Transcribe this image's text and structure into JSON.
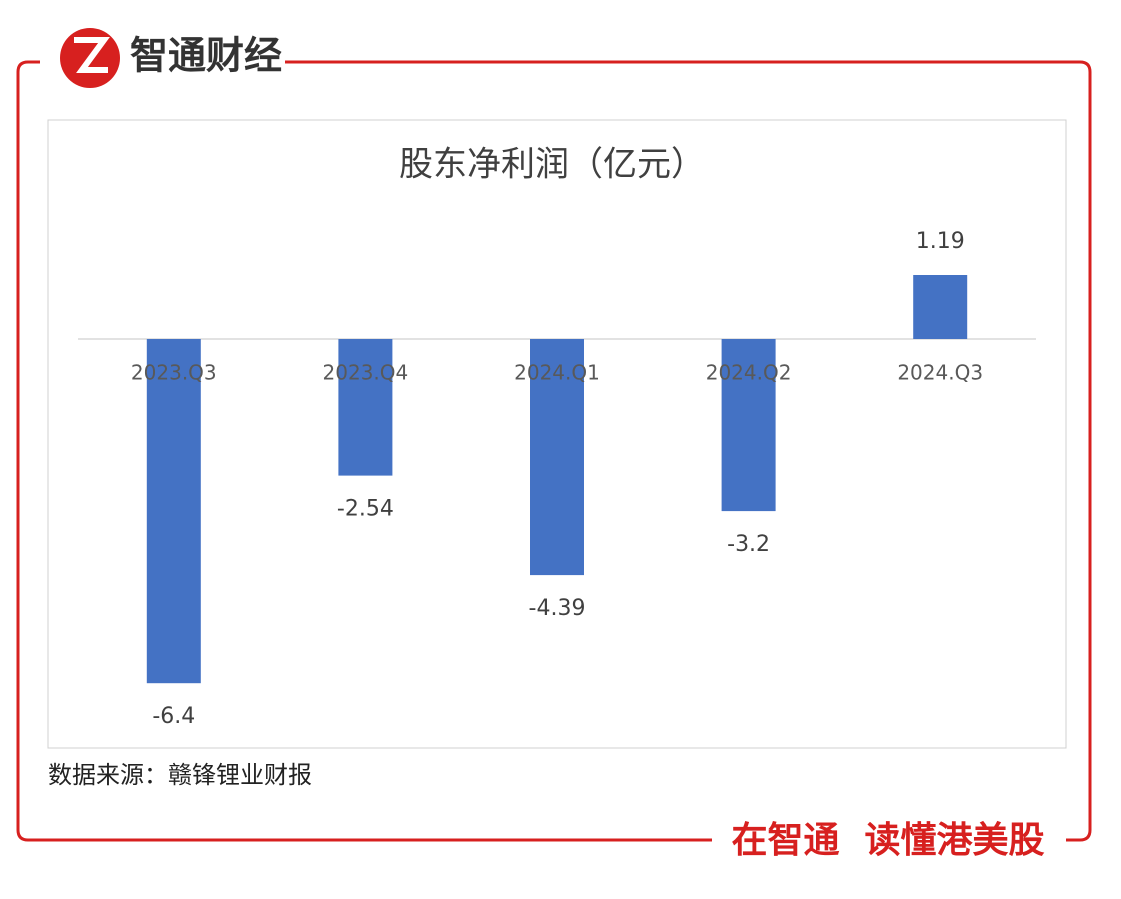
{
  "header": {
    "logo_text": "智通财经"
  },
  "chart_data": {
    "type": "bar",
    "title": "股东净利润（亿元）",
    "categories": [
      "2023.Q3",
      "2023.Q4",
      "2024.Q1",
      "2024.Q2",
      "2024.Q3"
    ],
    "values": [
      -6.4,
      -2.54,
      -4.39,
      -3.2,
      1.19
    ],
    "color": "#4472c4"
  },
  "source": "数据来源：赣锋锂业财报",
  "footer": {
    "slogan": "在智通  读懂港美股"
  }
}
